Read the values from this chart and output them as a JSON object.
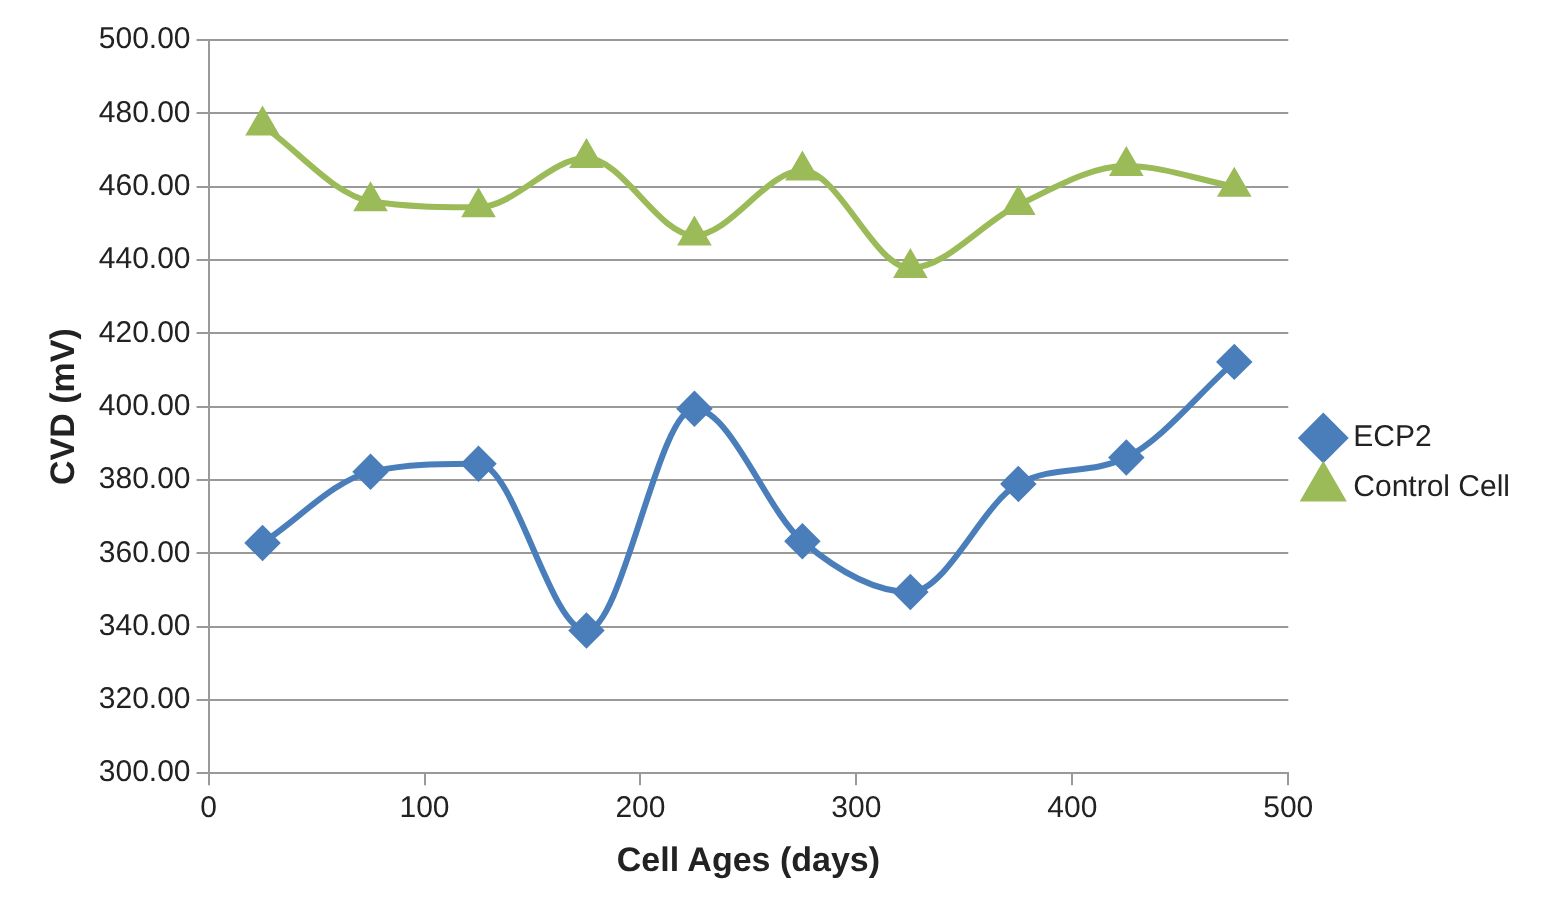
{
  "chart_data": {
    "type": "line",
    "xlabel": "Cell Ages (days)",
    "ylabel": "CVD (mV)",
    "x": [
      25,
      75,
      125,
      175,
      225,
      275,
      325,
      375,
      425,
      475
    ],
    "series": [
      {
        "name": "ECP2",
        "color": "#4a7ebb",
        "marker": "diamond",
        "values": [
          362.8,
          382.2,
          384.4,
          338.9,
          399.4,
          363.3,
          349.4,
          378.9,
          386.1,
          412.2
        ]
      },
      {
        "name": "Control Cell",
        "color": "#9bbb59",
        "marker": "triangle",
        "values": [
          476.7,
          456,
          454.4,
          467.8,
          446.7,
          464.4,
          437.8,
          455,
          465.6,
          460
        ]
      }
    ],
    "xlim": [
      0,
      500
    ],
    "xticks": [
      0,
      100,
      200,
      300,
      400,
      500
    ],
    "ylim": [
      300,
      500
    ],
    "yticks": [
      {
        "value": 300,
        "label": "300.00"
      },
      {
        "value": 320,
        "label": "320.00"
      },
      {
        "value": 340,
        "label": "340.00"
      },
      {
        "value": 360,
        "label": "360.00"
      },
      {
        "value": 380,
        "label": "380.00"
      },
      {
        "value": 400,
        "label": "400.00"
      },
      {
        "value": 420,
        "label": "420.00"
      },
      {
        "value": 440,
        "label": "440.00"
      },
      {
        "value": 460,
        "label": "460.00"
      },
      {
        "value": 480,
        "label": "480.00"
      },
      {
        "value": 500,
        "label": "500.00"
      }
    ],
    "grid": "y",
    "legend": "right",
    "line_style": "solid"
  }
}
